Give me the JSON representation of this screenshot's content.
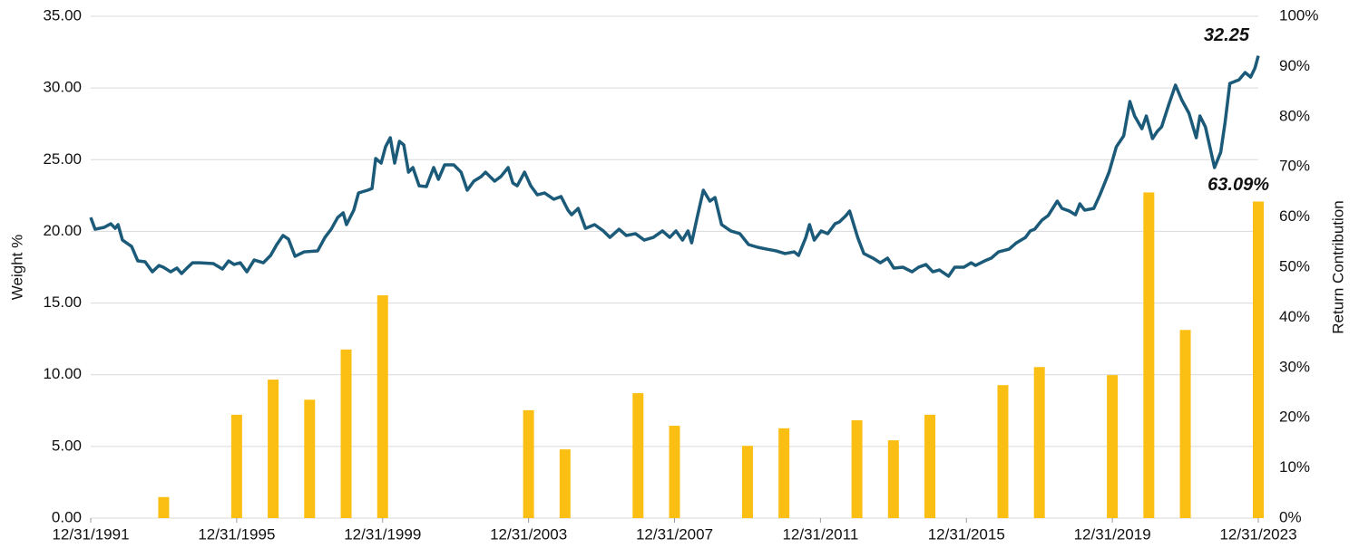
{
  "chart_data": {
    "type": "combo",
    "ylabel": "Weight %",
    "y2label": "Return Contribution",
    "xlim": [
      1991,
      2023
    ],
    "xticks": [
      {
        "value": 1991,
        "label": "12/31/1991"
      },
      {
        "value": 1995,
        "label": "12/31/1995"
      },
      {
        "value": 1999,
        "label": "12/31/1999"
      },
      {
        "value": 2003,
        "label": "12/31/2003"
      },
      {
        "value": 2007,
        "label": "12/31/2007"
      },
      {
        "value": 2011,
        "label": "12/31/2011"
      },
      {
        "value": 2015,
        "label": "12/31/2015"
      },
      {
        "value": 2019,
        "label": "12/31/2019"
      },
      {
        "value": 2023,
        "label": "12/31/2023"
      }
    ],
    "ylim": [
      0,
      35
    ],
    "yticks": [
      {
        "value": 0,
        "label": "0.00"
      },
      {
        "value": 5,
        "label": "5.00"
      },
      {
        "value": 10,
        "label": "10.00"
      },
      {
        "value": 15,
        "label": "15.00"
      },
      {
        "value": 20,
        "label": "20.00"
      },
      {
        "value": 25,
        "label": "25.00"
      },
      {
        "value": 30,
        "label": "30.00"
      },
      {
        "value": 35,
        "label": "35.00"
      }
    ],
    "y2lim": [
      0,
      100
    ],
    "y2ticks": [
      {
        "value": 0,
        "label": "0%"
      },
      {
        "value": 10,
        "label": "10%"
      },
      {
        "value": 20,
        "label": "20%"
      },
      {
        "value": 30,
        "label": "30%"
      },
      {
        "value": 40,
        "label": "40%"
      },
      {
        "value": 50,
        "label": "50%"
      },
      {
        "value": 60,
        "label": "60%"
      },
      {
        "value": 70,
        "label": "70%"
      },
      {
        "value": 80,
        "label": "80%"
      },
      {
        "value": 90,
        "label": "90%"
      },
      {
        "value": 100,
        "label": "100%"
      }
    ],
    "grid": true,
    "series": [
      {
        "type": "bar",
        "axis": "y2",
        "color": "#fbbf14",
        "x": [
          1993,
          1995,
          1996,
          1997,
          1998,
          1999,
          2003,
          2004,
          2006,
          2007,
          2009,
          2010,
          2012,
          2013,
          2014,
          2016,
          2017,
          2019,
          2020,
          2021,
          2023
        ],
        "values": [
          4.2,
          20.6,
          27.6,
          23.6,
          33.6,
          44.4,
          21.5,
          13.7,
          24.9,
          18.4,
          14.4,
          17.9,
          19.5,
          15.5,
          20.6,
          26.5,
          30.1,
          28.5,
          64.9,
          37.5,
          63.09
        ],
        "value_labels": [
          null,
          null,
          null,
          null,
          null,
          null,
          null,
          null,
          null,
          null,
          null,
          null,
          null,
          null,
          null,
          null,
          null,
          null,
          null,
          null,
          "63.09%"
        ]
      },
      {
        "type": "line",
        "color": "#1b5a78",
        "x": [
          1991.0,
          1991.12,
          1991.37,
          1991.55,
          1991.67,
          1991.75,
          1991.87,
          1992.12,
          1992.29,
          1992.49,
          1992.69,
          1992.87,
          1992.99,
          1993.19,
          1993.36,
          1993.49,
          1993.61,
          1993.79,
          1993.99,
          1994.36,
          1994.61,
          1994.78,
          1994.93,
          1995.1,
          1995.28,
          1995.48,
          1995.73,
          1995.93,
          1996.1,
          1996.27,
          1996.42,
          1996.6,
          1996.85,
          1997.22,
          1997.42,
          1997.59,
          1997.77,
          1997.92,
          1998.01,
          1998.21,
          1998.34,
          1998.59,
          1998.71,
          1998.81,
          1998.96,
          1999.08,
          1999.21,
          1999.33,
          1999.46,
          1999.58,
          1999.71,
          1999.83,
          2000.0,
          2000.2,
          2000.4,
          2000.53,
          2000.7,
          2000.95,
          2001.15,
          2001.32,
          2001.5,
          2001.7,
          2001.82,
          2002.07,
          2002.24,
          2002.44,
          2002.57,
          2002.69,
          2002.89,
          2003.06,
          2003.24,
          2003.44,
          2003.69,
          2003.89,
          2004.08,
          2004.18,
          2004.36,
          2004.56,
          2004.81,
          2005.05,
          2005.23,
          2005.48,
          2005.68,
          2005.93,
          2006.17,
          2006.42,
          2006.67,
          2006.87,
          2007.04,
          2007.22,
          2007.37,
          2007.47,
          2007.62,
          2007.79,
          2007.97,
          2008.11,
          2008.29,
          2008.54,
          2008.79,
          2009.03,
          2009.28,
          2009.53,
          2009.78,
          2010.03,
          2010.28,
          2010.4,
          2010.6,
          2010.7,
          2010.83,
          2011.02,
          2011.2,
          2011.4,
          2011.52,
          2011.7,
          2011.8,
          2012.02,
          2012.19,
          2012.44,
          2012.64,
          2012.84,
          2013.01,
          2013.26,
          2013.51,
          2013.69,
          2013.89,
          2014.08,
          2014.26,
          2014.51,
          2014.68,
          2014.93,
          2015.13,
          2015.25,
          2015.5,
          2015.68,
          2015.88,
          2016.17,
          2016.37,
          2016.62,
          2016.75,
          2016.87,
          2017.07,
          2017.24,
          2017.49,
          2017.62,
          2017.82,
          2017.99,
          2018.11,
          2018.24,
          2018.49,
          2018.66,
          2018.91,
          2019.11,
          2019.31,
          2019.48,
          2019.61,
          2019.81,
          2019.93,
          2020.1,
          2020.23,
          2020.35,
          2020.55,
          2020.73,
          2020.9,
          2021.1,
          2021.3,
          2021.4,
          2021.55,
          2021.8,
          2021.97,
          2022.09,
          2022.22,
          2022.47,
          2022.64,
          2022.79,
          2022.91,
          2023.0
        ],
        "values": [
          20.97,
          20.15,
          20.28,
          20.53,
          20.21,
          20.47,
          19.39,
          18.95,
          17.94,
          17.88,
          17.18,
          17.62,
          17.5,
          17.18,
          17.44,
          17.06,
          17.37,
          17.81,
          17.81,
          17.75,
          17.37,
          17.94,
          17.69,
          17.81,
          17.18,
          18.0,
          17.81,
          18.32,
          19.08,
          19.71,
          19.46,
          18.26,
          18.57,
          18.64,
          19.58,
          20.15,
          20.97,
          21.29,
          20.47,
          21.48,
          22.68,
          22.87,
          22.99,
          25.08,
          24.76,
          25.9,
          26.53,
          24.76,
          26.28,
          26.03,
          24.13,
          24.45,
          23.18,
          23.12,
          24.45,
          23.63,
          24.64,
          24.64,
          24.13,
          22.87,
          23.5,
          23.82,
          24.13,
          23.5,
          23.82,
          24.45,
          23.37,
          23.18,
          24.13,
          23.18,
          22.55,
          22.68,
          22.24,
          22.43,
          21.48,
          21.16,
          21.6,
          20.21,
          20.47,
          20.03,
          19.58,
          20.15,
          19.71,
          19.84,
          19.39,
          19.58,
          20.03,
          19.58,
          20.03,
          19.39,
          20.03,
          19.2,
          20.97,
          22.87,
          22.11,
          22.36,
          20.47,
          20.03,
          19.84,
          19.08,
          18.89,
          18.76,
          18.64,
          18.45,
          18.57,
          18.32,
          19.58,
          20.47,
          19.39,
          20.03,
          19.84,
          20.53,
          20.66,
          21.1,
          21.42,
          19.58,
          18.45,
          18.13,
          17.81,
          18.13,
          17.44,
          17.5,
          17.18,
          17.5,
          17.69,
          17.18,
          17.31,
          16.87,
          17.5,
          17.5,
          17.81,
          17.62,
          17.94,
          18.13,
          18.57,
          18.76,
          19.2,
          19.58,
          20.03,
          20.15,
          20.78,
          21.1,
          22.11,
          21.6,
          21.42,
          21.16,
          21.92,
          21.48,
          21.6,
          22.55,
          24.13,
          25.9,
          26.66,
          29.06,
          28.05,
          27.16,
          28.05,
          26.47,
          26.97,
          27.29,
          28.87,
          30.2,
          29.18,
          28.24,
          26.53,
          28.05,
          27.29,
          24.45,
          25.52,
          27.61,
          30.32,
          30.57,
          31.08,
          30.76,
          31.4,
          32.25
        ]
      }
    ]
  }
}
